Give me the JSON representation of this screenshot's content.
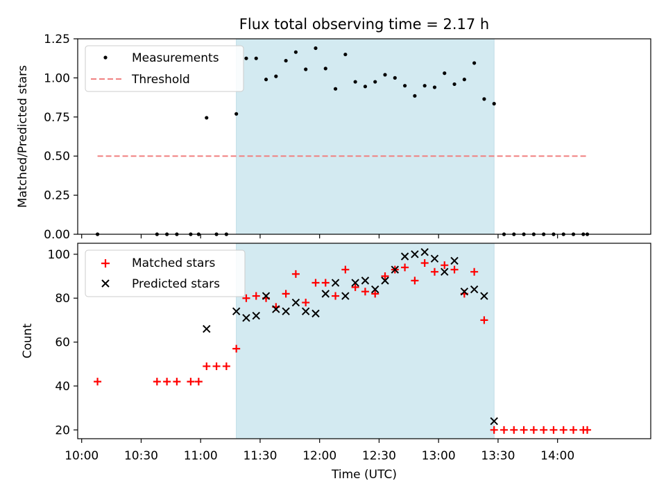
{
  "chart_data": {
    "type": "scatter",
    "title": "Flux total observing time = 2.17 h",
    "xlabel": "Time (UTC)",
    "xlim": [
      "09:58",
      "14:47"
    ],
    "xticks": [
      "10:00",
      "10:30",
      "11:00",
      "11:30",
      "12:00",
      "12:30",
      "13:00",
      "13:30",
      "14:00"
    ],
    "shaded_span": [
      "11:18",
      "13:28"
    ],
    "shaded_color": "#d3eaf1",
    "grid": false,
    "panels": [
      {
        "ylabel": "Matched/Predicted stars",
        "ylim": [
          0,
          1.25
        ],
        "yticks": [
          "0.00",
          "0.25",
          "0.50",
          "0.75",
          "1.00",
          "1.25"
        ],
        "legend_position": "upper-left",
        "series": [
          {
            "name": "Measurements",
            "marker": "dot",
            "color": "#000000",
            "points": [
              [
                "10:08",
                0.0
              ],
              [
                "10:38",
                0.0
              ],
              [
                "10:43",
                0.0
              ],
              [
                "10:48",
                0.0
              ],
              [
                "10:55",
                0.0
              ],
              [
                "10:59",
                0.0
              ],
              [
                "11:03",
                0.745
              ],
              [
                "11:08",
                0.0
              ],
              [
                "11:13",
                0.0
              ],
              [
                "11:18",
                0.77
              ],
              [
                "11:23",
                1.125
              ],
              [
                "11:28",
                1.125
              ],
              [
                "11:33",
                0.99
              ],
              [
                "11:38",
                1.01
              ],
              [
                "11:43",
                1.11
              ],
              [
                "11:48",
                1.165
              ],
              [
                "11:53",
                1.055
              ],
              [
                "11:58",
                1.19
              ],
              [
                "12:03",
                1.06
              ],
              [
                "12:08",
                0.93
              ],
              [
                "12:13",
                1.15
              ],
              [
                "12:18",
                0.975
              ],
              [
                "12:23",
                0.945
              ],
              [
                "12:28",
                0.975
              ],
              [
                "12:33",
                1.02
              ],
              [
                "12:38",
                1.0
              ],
              [
                "12:43",
                0.95
              ],
              [
                "12:48",
                0.885
              ],
              [
                "12:53",
                0.95
              ],
              [
                "12:58",
                0.94
              ],
              [
                "13:03",
                1.03
              ],
              [
                "13:08",
                0.96
              ],
              [
                "13:13",
                0.99
              ],
              [
                "13:18",
                1.095
              ],
              [
                "13:23",
                0.865
              ],
              [
                "13:28",
                0.835
              ],
              [
                "13:33",
                0.0
              ],
              [
                "13:38",
                0.0
              ],
              [
                "13:43",
                0.0
              ],
              [
                "13:48",
                0.0
              ],
              [
                "13:53",
                0.0
              ],
              [
                "13:58",
                0.0
              ],
              [
                "14:03",
                0.0
              ],
              [
                "14:08",
                0.0
              ],
              [
                "14:13",
                0.0
              ],
              [
                "14:15",
                0.0
              ]
            ]
          },
          {
            "name": "Threshold",
            "marker": "dashed-line",
            "color": "#f08080",
            "points": [
              [
                "10:08",
                0.5
              ],
              [
                "14:15",
                0.5
              ]
            ]
          }
        ]
      },
      {
        "ylabel": "Count",
        "ylim": [
          16,
          105
        ],
        "yticks": [
          "20",
          "40",
          "60",
          "80",
          "100"
        ],
        "legend_position": "upper-left",
        "series": [
          {
            "name": "Matched stars",
            "marker": "plus",
            "color": "#ff0000",
            "points": [
              [
                "10:08",
                42
              ],
              [
                "10:38",
                42
              ],
              [
                "10:43",
                42
              ],
              [
                "10:48",
                42
              ],
              [
                "10:55",
                42
              ],
              [
                "10:59",
                42
              ],
              [
                "11:03",
                49
              ],
              [
                "11:08",
                49
              ],
              [
                "11:13",
                49
              ],
              [
                "11:18",
                57
              ],
              [
                "11:23",
                80
              ],
              [
                "11:28",
                81
              ],
              [
                "11:33",
                80
              ],
              [
                "11:38",
                76
              ],
              [
                "11:43",
                82
              ],
              [
                "11:48",
                91
              ],
              [
                "11:53",
                78
              ],
              [
                "11:58",
                87
              ],
              [
                "12:03",
                87
              ],
              [
                "12:08",
                81
              ],
              [
                "12:13",
                93
              ],
              [
                "12:18",
                85
              ],
              [
                "12:23",
                83
              ],
              [
                "12:28",
                82
              ],
              [
                "12:33",
                90
              ],
              [
                "12:38",
                93
              ],
              [
                "12:43",
                94
              ],
              [
                "12:48",
                88
              ],
              [
                "12:53",
                96
              ],
              [
                "12:58",
                92
              ],
              [
                "13:03",
                95
              ],
              [
                "13:08",
                93
              ],
              [
                "13:13",
                82
              ],
              [
                "13:18",
                92
              ],
              [
                "13:23",
                70
              ],
              [
                "13:28",
                20
              ],
              [
                "13:33",
                20
              ],
              [
                "13:38",
                20
              ],
              [
                "13:43",
                20
              ],
              [
                "13:48",
                20
              ],
              [
                "13:53",
                20
              ],
              [
                "13:58",
                20
              ],
              [
                "14:03",
                20
              ],
              [
                "14:08",
                20
              ],
              [
                "14:13",
                20
              ],
              [
                "14:15",
                20
              ]
            ]
          },
          {
            "name": "Predicted stars",
            "marker": "x",
            "color": "#000000",
            "points": [
              [
                "11:03",
                66
              ],
              [
                "11:18",
                74
              ],
              [
                "11:23",
                71
              ],
              [
                "11:28",
                72
              ],
              [
                "11:33",
                81
              ],
              [
                "11:38",
                75
              ],
              [
                "11:43",
                74
              ],
              [
                "11:48",
                78
              ],
              [
                "11:53",
                74
              ],
              [
                "11:58",
                73
              ],
              [
                "12:03",
                82
              ],
              [
                "12:08",
                87
              ],
              [
                "12:13",
                81
              ],
              [
                "12:18",
                87
              ],
              [
                "12:23",
                88
              ],
              [
                "12:28",
                84
              ],
              [
                "12:33",
                88
              ],
              [
                "12:38",
                93
              ],
              [
                "12:43",
                99
              ],
              [
                "12:48",
                100
              ],
              [
                "12:53",
                101
              ],
              [
                "12:58",
                98
              ],
              [
                "13:03",
                92
              ],
              [
                "13:08",
                97
              ],
              [
                "13:13",
                83
              ],
              [
                "13:18",
                84
              ],
              [
                "13:23",
                81
              ],
              [
                "13:28",
                24
              ]
            ]
          }
        ]
      }
    ]
  }
}
